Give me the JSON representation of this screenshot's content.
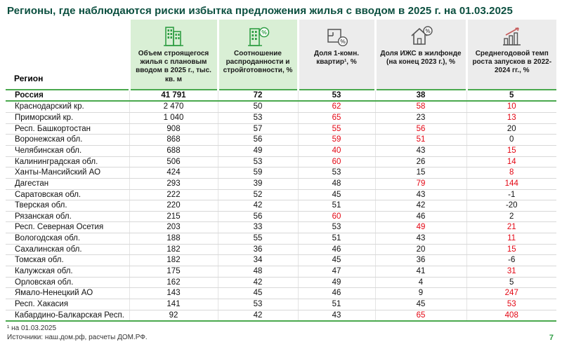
{
  "title": "Регионы, где наблюдаются риски избытка предложения жилья с вводом в 2025 г. на 01.03.2025",
  "table": {
    "region_header": "Регион",
    "columns": [
      {
        "label": "Объем строящегося жилья с плановым вводом в 2025 г., тыс. кв. м",
        "icon": "building-icon",
        "style": "green"
      },
      {
        "label": "Соотношение распроданности и стройготовности, %",
        "icon": "building-percent-icon",
        "style": "green"
      },
      {
        "label": "Доля 1-комн. квартир¹, %",
        "icon": "floorplan-percent-icon",
        "style": "gray"
      },
      {
        "label": "Доля ИЖС в жилфонде (на конец 2023 г.), %",
        "icon": "house-percent-icon",
        "style": "gray"
      },
      {
        "label": "Среднегодовой темп роста запусков в 2022-2024 гг., %",
        "icon": "chart-growth-icon",
        "style": "gray"
      }
    ],
    "rows": [
      {
        "region": "Россия",
        "values": [
          "41 791",
          "72",
          "53",
          "38",
          "5"
        ],
        "red": [],
        "bold": true
      },
      {
        "region": "Краснодарский кр.",
        "values": [
          "2 470",
          "50",
          "62",
          "58",
          "10"
        ],
        "red": [
          2,
          3,
          4
        ]
      },
      {
        "region": "Приморский кр.",
        "values": [
          "1 040",
          "53",
          "65",
          "23",
          "13"
        ],
        "red": [
          2,
          4
        ]
      },
      {
        "region": "Респ. Башкортостан",
        "values": [
          "908",
          "57",
          "55",
          "56",
          "20"
        ],
        "red": [
          2,
          3
        ]
      },
      {
        "region": "Воронежская обл.",
        "values": [
          "868",
          "56",
          "59",
          "51",
          "0"
        ],
        "red": [
          2,
          3
        ]
      },
      {
        "region": "Челябинская обл.",
        "values": [
          "688",
          "49",
          "40",
          "43",
          "15"
        ],
        "red": [
          2,
          4
        ]
      },
      {
        "region": "Калининградская обл.",
        "values": [
          "506",
          "53",
          "60",
          "26",
          "14"
        ],
        "red": [
          2,
          4
        ]
      },
      {
        "region": "Ханты-Мансийский АО",
        "values": [
          "424",
          "59",
          "53",
          "15",
          "8"
        ],
        "red": [
          4
        ]
      },
      {
        "region": "Дагестан",
        "values": [
          "293",
          "39",
          "48",
          "79",
          "144"
        ],
        "red": [
          3,
          4
        ]
      },
      {
        "region": "Саратовская обл.",
        "values": [
          "222",
          "52",
          "45",
          "43",
          "-1"
        ],
        "red": []
      },
      {
        "region": "Тверская обл.",
        "values": [
          "220",
          "42",
          "51",
          "42",
          "-20"
        ],
        "red": []
      },
      {
        "region": "Рязанская обл.",
        "values": [
          "215",
          "56",
          "60",
          "46",
          "2"
        ],
        "red": [
          2
        ]
      },
      {
        "region": "Респ. Северная Осетия",
        "values": [
          "203",
          "33",
          "53",
          "49",
          "21"
        ],
        "red": [
          3,
          4
        ]
      },
      {
        "region": "Вологодская обл.",
        "values": [
          "188",
          "55",
          "51",
          "43",
          "11"
        ],
        "red": [
          4
        ]
      },
      {
        "region": "Сахалинская обл.",
        "values": [
          "182",
          "36",
          "46",
          "20",
          "15"
        ],
        "red": [
          4
        ]
      },
      {
        "region": "Томская обл.",
        "values": [
          "182",
          "34",
          "45",
          "36",
          "-6"
        ],
        "red": []
      },
      {
        "region": "Калужская обл.",
        "values": [
          "175",
          "48",
          "47",
          "41",
          "31"
        ],
        "red": [
          4
        ]
      },
      {
        "region": "Орловская обл.",
        "values": [
          "162",
          "42",
          "49",
          "4",
          "5"
        ],
        "red": []
      },
      {
        "region": "Ямало-Ненецкий АО",
        "values": [
          "143",
          "45",
          "46",
          "9",
          "247"
        ],
        "red": [
          4
        ]
      },
      {
        "region": "Респ. Хакасия",
        "values": [
          "141",
          "53",
          "51",
          "45",
          "53"
        ],
        "red": [
          4
        ]
      },
      {
        "region": "Кабардино-Балкарская Респ.",
        "values": [
          "92",
          "42",
          "43",
          "65",
          "408"
        ],
        "red": [
          3,
          4
        ]
      }
    ]
  },
  "footnote": "¹ на 01.03.2025",
  "sources": "Источники: наш.дом.рф, расчеты ДОМ.РФ.",
  "page_number": "7",
  "colors": {
    "title": "#0b4f3f",
    "red": "#e30613",
    "green-line": "#4aa94e",
    "green-bg": "#d9efd5",
    "gray-bg": "#ececec",
    "page-green": "#2f9e44",
    "icon-green": "#2f9e44",
    "icon-gray": "#555555"
  }
}
